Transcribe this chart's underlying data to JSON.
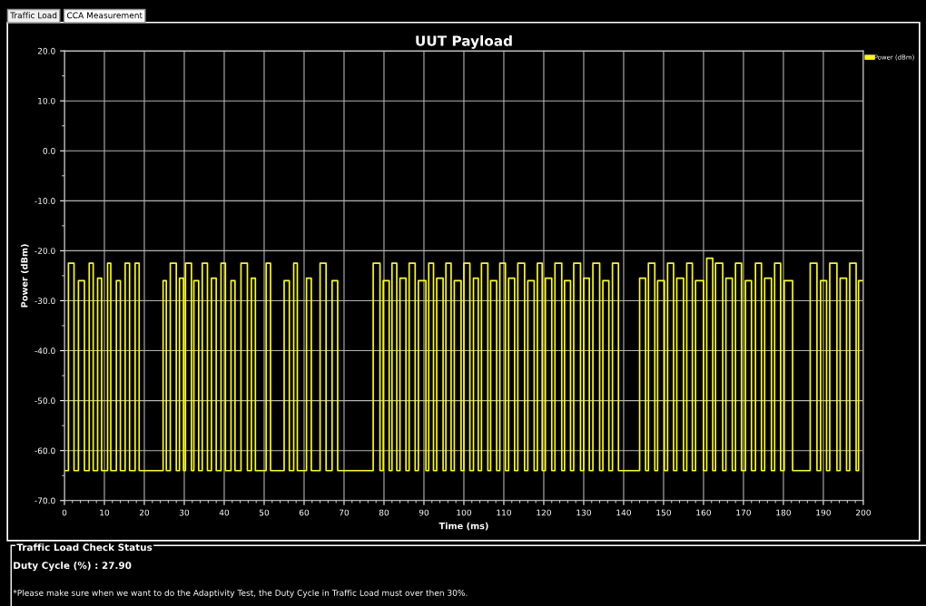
{
  "chart_data": {
    "type": "step",
    "title": "UUT Payload",
    "xlabel": "Time (ms)",
    "ylabel": "Power (dBm)",
    "annotations": [
      "Traffic Load",
      "CCA Measurement",
      "Traffic Load Check Status",
      "Duty Cycle (%) : 27.90",
      "*Please make sure when we want to do the Adaptivity Test, the Duty Cycle in Traffic Load must over then 30%."
    ],
    "xlim": [
      0,
      200
    ],
    "xticks": [
      0,
      10,
      20,
      30,
      40,
      50,
      60,
      70,
      80,
      90,
      100,
      110,
      120,
      130,
      140,
      150,
      160,
      170,
      180,
      190,
      200
    ],
    "ylim": [
      -70,
      20
    ],
    "yticks": [
      {
        "value": -70,
        "label": "-70.0"
      },
      {
        "value": -60,
        "label": "-60.0"
      },
      {
        "value": -50,
        "label": "-50.0"
      },
      {
        "value": -40,
        "label": "-40.0"
      },
      {
        "value": -30,
        "label": "-30.0"
      },
      {
        "value": -20,
        "label": "-20.0"
      },
      {
        "value": -10,
        "label": "-10.0"
      },
      {
        "value": 0,
        "label": "0.0"
      },
      {
        "value": 10,
        "label": "10.0"
      },
      {
        "value": 20,
        "label": "20.0"
      }
    ],
    "grid": true,
    "legend": "top right",
    "line_style": "solid",
    "series": [
      {
        "name": "Power (dBm)",
        "color": "#ffff00",
        "x": [
          0,
          1,
          2.4,
          3.5,
          5,
          6.2,
          7.2,
          8.3,
          9.3,
          10.8,
          11.6,
          13,
          14,
          15.2,
          16.3,
          17.7,
          18.7,
          24.7,
          25.5,
          26.5,
          28,
          28.8,
          29.8,
          30.3,
          31.8,
          32.4,
          33.6,
          34.5,
          35.8,
          36.8,
          38,
          39.2,
          40.3,
          41.7,
          42.7,
          44.2,
          45.8,
          46.8,
          47.8,
          50.5,
          51.6,
          55,
          56.3,
          57.4,
          58.3,
          60.6,
          61.8,
          64,
          65.5,
          67,
          68.4,
          77.3,
          79,
          79.8,
          81.3,
          82,
          83.2,
          84,
          85.5,
          86.3,
          87.8,
          88.6,
          90.5,
          91.2,
          92.4,
          93.2,
          94.8,
          95.5,
          96.8,
          97.6,
          99.3,
          100,
          101.5,
          102.4,
          103.6,
          104.4,
          106,
          106.7,
          108.2,
          109,
          110.4,
          111.2,
          112.7,
          113.5,
          115.2,
          116,
          117.6,
          118.4,
          119.6,
          120.4,
          122,
          122.8,
          124.5,
          125.2,
          126.7,
          127.5,
          129.2,
          130,
          131.4,
          132.3,
          134,
          134.8,
          136.3,
          137.2,
          138.7,
          144,
          145.5,
          146.2,
          147.8,
          148.5,
          150.2,
          151,
          152.5,
          153.3,
          155,
          155.8,
          157.2,
          158,
          160,
          160.8,
          162.3,
          163,
          164.8,
          165.6,
          167.2,
          168,
          169.5,
          170.5,
          172,
          173,
          174.5,
          175.3,
          177,
          177.8,
          179.3,
          180.2,
          182.3,
          186.7,
          188.4,
          189.3,
          190.8,
          191.6,
          193.4,
          194.2,
          195.8,
          196.6,
          198.2,
          198.8,
          200
        ],
        "values": [
          -64,
          -22.5,
          -64,
          -26,
          -64,
          -22.5,
          -64,
          -25.5,
          -64,
          -22.5,
          -64,
          -26,
          -64,
          -22.5,
          -64,
          -22.5,
          -64,
          -26,
          -64,
          -22.5,
          -64,
          -25.5,
          -64,
          -22.5,
          -64,
          -26,
          -64,
          -22.5,
          -64,
          -25.5,
          -64,
          -22.5,
          -64,
          -26,
          -64,
          -22.5,
          -64,
          -25.5,
          -64,
          -22.5,
          -64,
          -26,
          -64,
          -22.5,
          -64,
          -25.5,
          -64,
          -22.5,
          -64,
          -26,
          -64,
          -22.5,
          -64,
          -26,
          -64,
          -22.5,
          -64,
          -25.5,
          -64,
          -22.5,
          -64,
          -26,
          -64,
          -22.5,
          -64,
          -25.5,
          -64,
          -22.5,
          -64,
          -26,
          -64,
          -22.5,
          -64,
          -25.5,
          -64,
          -22.5,
          -64,
          -26,
          -64,
          -22.5,
          -64,
          -25.5,
          -64,
          -22.5,
          -64,
          -26,
          -64,
          -22.5,
          -64,
          -25.5,
          -64,
          -22.5,
          -64,
          -26,
          -64,
          -22.5,
          -64,
          -25.5,
          -64,
          -22.5,
          -64,
          -26,
          -64,
          -22.5,
          -64,
          -25.5,
          -64,
          -22.5,
          -64,
          -26,
          -64,
          -22.5,
          -64,
          -25.5,
          -64,
          -22.5,
          -64,
          -26,
          -64,
          -21.5,
          -64,
          -22.5,
          -64,
          -25.5,
          -64,
          -22.5,
          -64,
          -26,
          -64,
          -22.5,
          -64,
          -25.5,
          -64,
          -22.5,
          -64,
          -26,
          -64,
          -22.5,
          -64,
          -26,
          -64,
          -22.5,
          -64,
          -25.5,
          -64,
          -22.5,
          -64,
          -26,
          -26
        ]
      }
    ]
  }
}
